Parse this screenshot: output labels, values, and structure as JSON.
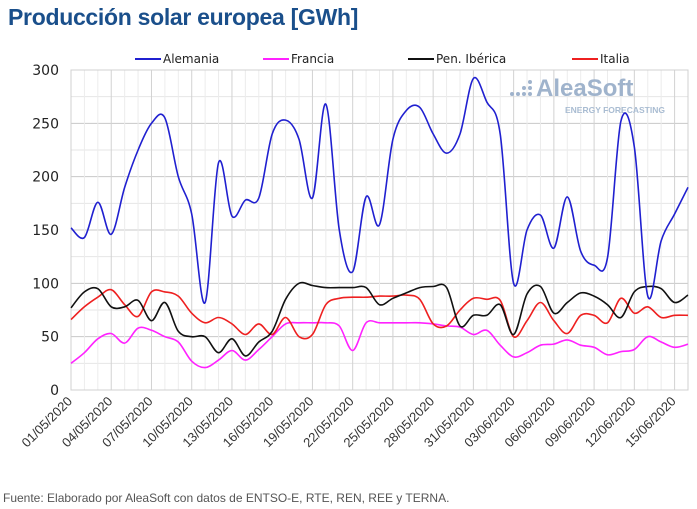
{
  "title": "Producción solar europea [GWh]",
  "source": "Fuente: Elaborado por AleaSoft con datos de ENTSO-E, RTE, REN, REE y TERNA.",
  "watermark": {
    "brand": "AleaSoft",
    "tagline": "ENERGY FORECASTING"
  },
  "chart_data": {
    "type": "line",
    "title": "Producción solar europea [GWh]",
    "xlabel": "",
    "ylabel": "",
    "ylim": [
      0,
      300
    ],
    "yticks": [
      0,
      50,
      100,
      150,
      200,
      250,
      300
    ],
    "grid": true,
    "legend": "top",
    "x_start": "01/05/2020",
    "x_end": "16/06/2020",
    "x_tick_labels": [
      "01/05/2020",
      "04/05/2020",
      "07/05/2020",
      "10/05/2020",
      "13/05/2020",
      "16/05/2020",
      "19/05/2020",
      "22/05/2020",
      "25/05/2020",
      "28/05/2020",
      "31/05/2020",
      "03/06/2020",
      "06/06/2020",
      "09/06/2020",
      "12/06/2020",
      "15/06/2020"
    ],
    "series": [
      {
        "name": "Alemania",
        "color": "#2020d0",
        "values": [
          152,
          143,
          176,
          146,
          190,
          225,
          250,
          255,
          200,
          165,
          82,
          213,
          163,
          178,
          180,
          240,
          253,
          235,
          180,
          268,
          150,
          111,
          181,
          155,
          235,
          262,
          265,
          240,
          222,
          240,
          292,
          270,
          240,
          100,
          150,
          164,
          133,
          181,
          130,
          117,
          124,
          252,
          228,
          88,
          140,
          165,
          190
        ]
      },
      {
        "name": "Francia",
        "color": "#ff22ff",
        "values": [
          25,
          35,
          48,
          53,
          44,
          58,
          56,
          50,
          45,
          27,
          21,
          28,
          37,
          28,
          38,
          50,
          62,
          63,
          63,
          63,
          60,
          37,
          63,
          63,
          63,
          63,
          63,
          62,
          60,
          59,
          52,
          56,
          42,
          31,
          35,
          42,
          43,
          47,
          42,
          40,
          33,
          36,
          38,
          50,
          45,
          40,
          43
        ]
      },
      {
        "name": "Pen. Ibérica",
        "color": "#111111",
        "values": [
          77,
          92,
          95,
          78,
          78,
          84,
          65,
          82,
          55,
          50,
          50,
          35,
          48,
          32,
          45,
          55,
          85,
          100,
          98,
          96,
          96,
          96,
          96,
          80,
          86,
          91,
          96,
          97,
          96,
          60,
          70,
          70,
          80,
          52,
          90,
          97,
          72,
          82,
          91,
          88,
          80,
          68,
          92,
          97,
          95,
          82,
          89
        ]
      },
      {
        "name": "Italia",
        "color": "#ee2020",
        "values": [
          66,
          78,
          87,
          94,
          80,
          69,
          92,
          92,
          88,
          72,
          63,
          68,
          62,
          52,
          62,
          52,
          68,
          50,
          52,
          80,
          86,
          87,
          87,
          88,
          88,
          89,
          85,
          62,
          60,
          75,
          86,
          85,
          84,
          50,
          65,
          82,
          65,
          53,
          70,
          70,
          63,
          86,
          72,
          78,
          68,
          70,
          70
        ]
      }
    ]
  }
}
